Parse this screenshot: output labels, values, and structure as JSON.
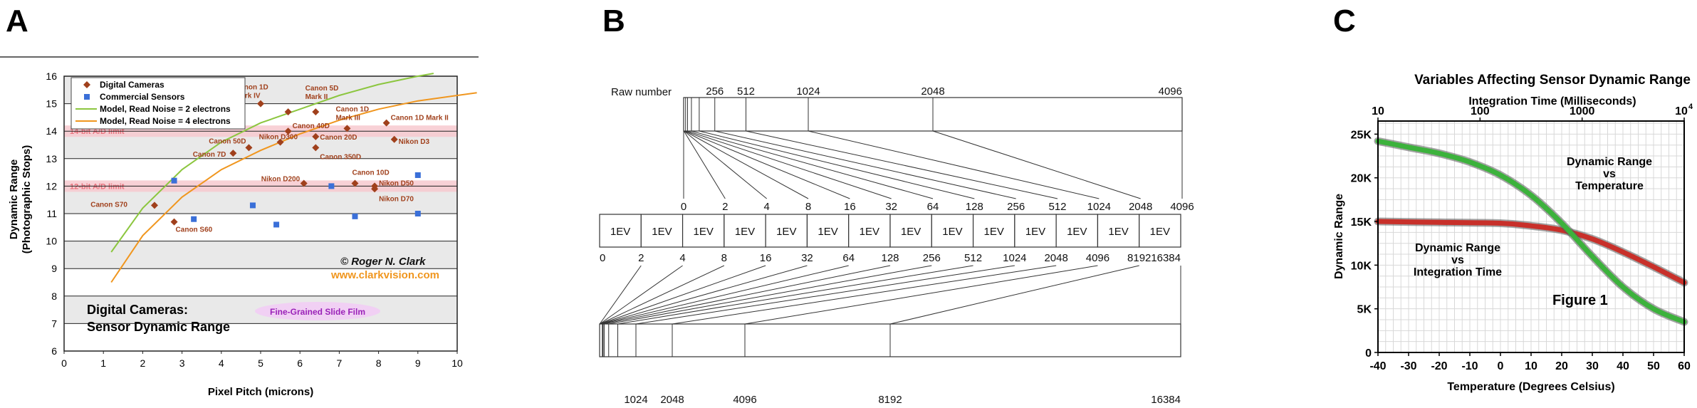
{
  "panel_labels": [
    "A",
    "B",
    "C"
  ],
  "chart_data": [
    {
      "panel": "A",
      "type": "scatter",
      "xlabel": "Pixel Pitch (microns)",
      "ylabel_line1": "Dynamic Range",
      "ylabel_line2": "(Photographic Stops)",
      "xlim": [
        0,
        10
      ],
      "ylim": [
        6,
        16
      ],
      "xticks": [
        "0",
        "1",
        "2",
        "3",
        "4",
        "5",
        "6",
        "7",
        "8",
        "9",
        "10"
      ],
      "yticks": [
        "6",
        "7",
        "8",
        "9",
        "10",
        "11",
        "12",
        "13",
        "14",
        "15",
        "16"
      ],
      "legend": {
        "placement": "top-left",
        "entries": [
          "Digital Cameras",
          "Commercial Sensors",
          "Model, Read Noise = 2 electrons",
          "Model, Read Noise = 4 electrons"
        ]
      },
      "limit_bands": [
        {
          "label": "14-bit A/D limit",
          "y": 14
        },
        {
          "label": "12-bit A/D limit",
          "y": 12
        }
      ],
      "series": [
        {
          "name": "Digital Cameras",
          "color": "#a0401c",
          "marker": "diamond",
          "points": [
            {
              "x": 2.3,
              "y": 11.3,
              "label": "Canon S70"
            },
            {
              "x": 2.8,
              "y": 10.7,
              "label": "Canon S60"
            },
            {
              "x": 4.3,
              "y": 13.2,
              "label": "Canon 7D"
            },
            {
              "x": 4.7,
              "y": 13.4,
              "label": "Canon 50D"
            },
            {
              "x": 5.7,
              "y": 14.7,
              "label": "Canon 5D Mark II"
            },
            {
              "x": 5.0,
              "y": 15.0,
              "label": "Canon 1D Mark IV"
            },
            {
              "x": 5.7,
              "y": 14.0,
              "label": "Canon 40D"
            },
            {
              "x": 6.4,
              "y": 14.7,
              "label": ""
            },
            {
              "x": 5.5,
              "y": 13.6,
              "label": "Nikon D300"
            },
            {
              "x": 6.4,
              "y": 13.8,
              "label": "Canon 20D"
            },
            {
              "x": 6.4,
              "y": 13.4,
              "label": "Canon 350D"
            },
            {
              "x": 7.2,
              "y": 14.1,
              "label": "Canon 1D Mark III"
            },
            {
              "x": 6.1,
              "y": 12.1,
              "label": "Nikon D200"
            },
            {
              "x": 7.4,
              "y": 12.1,
              "label": "Canon 10D"
            },
            {
              "x": 7.9,
              "y": 12.0,
              "label": "Nikon D50"
            },
            {
              "x": 7.9,
              "y": 11.9,
              "label": "Nikon D70"
            },
            {
              "x": 8.2,
              "y": 14.3,
              "label": "Canon 1D Mark II"
            },
            {
              "x": 8.4,
              "y": 13.7,
              "label": "Nikon D3"
            }
          ]
        },
        {
          "name": "Commercial Sensors",
          "color": "#3a6fd8",
          "marker": "square",
          "points": [
            {
              "x": 2.8,
              "y": 12.2
            },
            {
              "x": 3.3,
              "y": 10.8
            },
            {
              "x": 4.8,
              "y": 11.3
            },
            {
              "x": 5.4,
              "y": 10.6
            },
            {
              "x": 6.8,
              "y": 12.0
            },
            {
              "x": 7.4,
              "y": 10.9
            },
            {
              "x": 9.0,
              "y": 12.4
            },
            {
              "x": 9.0,
              "y": 11.0
            }
          ]
        },
        {
          "name": "Model, Read Noise = 2 electrons",
          "color": "#8cc63f",
          "marker": "line",
          "points": [
            {
              "x": 1.2,
              "y": 9.6
            },
            {
              "x": 2.0,
              "y": 11.2
            },
            {
              "x": 3.0,
              "y": 12.6
            },
            {
              "x": 4.0,
              "y": 13.6
            },
            {
              "x": 5.0,
              "y": 14.3
            },
            {
              "x": 6.0,
              "y": 14.8
            },
            {
              "x": 7.0,
              "y": 15.3
            },
            {
              "x": 8.0,
              "y": 15.7
            },
            {
              "x": 9.0,
              "y": 16.0
            },
            {
              "x": 9.4,
              "y": 16.1
            }
          ]
        },
        {
          "name": "Model, Read Noise = 4 electrons",
          "color": "#f0961e",
          "marker": "line",
          "points": [
            {
              "x": 1.2,
              "y": 8.5
            },
            {
              "x": 2.0,
              "y": 10.2
            },
            {
              "x": 3.0,
              "y": 11.6
            },
            {
              "x": 4.0,
              "y": 12.6
            },
            {
              "x": 5.0,
              "y": 13.3
            },
            {
              "x": 6.0,
              "y": 13.9
            },
            {
              "x": 7.0,
              "y": 14.4
            },
            {
              "x": 8.0,
              "y": 14.8
            },
            {
              "x": 9.0,
              "y": 15.1
            },
            {
              "x": 10.5,
              "y": 15.4
            }
          ]
        }
      ],
      "annotations": {
        "copyright": "© Roger N. Clark",
        "website": "www.clarkvision.com",
        "title_line1": "Digital Cameras:",
        "title_line2": "Sensor Dynamic Range",
        "film_label": "Fine-Grained Slide Film"
      }
    },
    {
      "panel": "B",
      "type": "table",
      "raw_label": "Raw number",
      "raw_ticks": [
        256,
        512,
        1024,
        2048,
        4096
      ],
      "raw_max": 4096,
      "lin_ticks": [
        0,
        2,
        4,
        8,
        16,
        32,
        64,
        128,
        256,
        512,
        1024,
        2048,
        4096
      ],
      "ev_label": "1EV",
      "ev_count": 14,
      "ev_ticks": [
        0,
        2,
        4,
        8,
        16,
        32,
        64,
        128,
        256,
        512,
        1024,
        2048,
        4096,
        8192,
        16384
      ],
      "bottom_ticks": [
        1024,
        2048,
        4096,
        8192,
        16384
      ],
      "bottom_max": 16384
    },
    {
      "panel": "C",
      "type": "line",
      "title": "Variables Affecting Sensor Dynamic Range",
      "top_xlabel": "Integration Time (Milliseconds)",
      "top_xticks": [
        "10",
        "100",
        "1000",
        "10"
      ],
      "top_tick_exponent": "4",
      "xlabel": "Temperature (Degrees Celsius)",
      "ylabel": "Dynamic Range",
      "xlim": [
        -40,
        60
      ],
      "ylim": [
        0,
        25000
      ],
      "xticks": [
        "-40",
        "-30",
        "-20",
        "-10",
        "0",
        "10",
        "20",
        "30",
        "40",
        "50",
        "60"
      ],
      "yticks": [
        "0",
        "5K",
        "10K",
        "15K",
        "20K",
        "25K"
      ],
      "figure_label": "Figure 1",
      "series": [
        {
          "name": "Dynamic Range vs Temperature",
          "label_lines": [
            "Dynamic Range",
            "vs",
            "Temperature"
          ],
          "color": "#3cb23c",
          "points": [
            {
              "x": -40,
              "y": 24200
            },
            {
              "x": -30,
              "y": 23500
            },
            {
              "x": -20,
              "y": 22800
            },
            {
              "x": -10,
              "y": 21800
            },
            {
              "x": 0,
              "y": 20300
            },
            {
              "x": 10,
              "y": 18000
            },
            {
              "x": 20,
              "y": 14800
            },
            {
              "x": 30,
              "y": 11000
            },
            {
              "x": 40,
              "y": 7500
            },
            {
              "x": 50,
              "y": 5000
            },
            {
              "x": 60,
              "y": 3500
            }
          ]
        },
        {
          "name": "Dynamic Range vs Integration Time",
          "label_lines": [
            "Dynamic Range",
            "vs",
            "Integration Time"
          ],
          "color": "#c8302a",
          "points": [
            {
              "x": -40,
              "y": 15000
            },
            {
              "x": -20,
              "y": 14900
            },
            {
              "x": 0,
              "y": 14800
            },
            {
              "x": 10,
              "y": 14500
            },
            {
              "x": 20,
              "y": 14000
            },
            {
              "x": 30,
              "y": 13000
            },
            {
              "x": 40,
              "y": 11500
            },
            {
              "x": 50,
              "y": 9800
            },
            {
              "x": 60,
              "y": 8000
            }
          ]
        }
      ]
    }
  ]
}
